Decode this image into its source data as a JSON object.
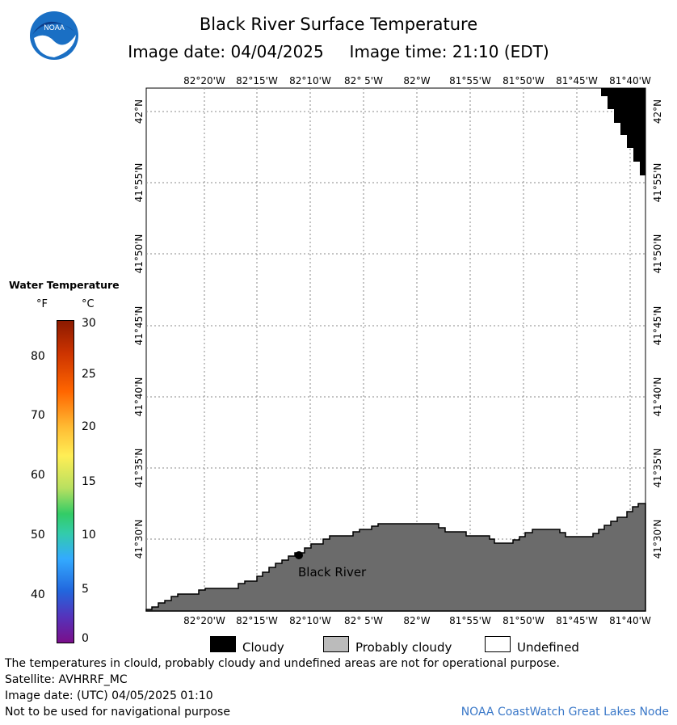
{
  "header": {
    "title": "Black River Surface Temperature",
    "subtitle": "Image date: 04/04/2025     Image time: 21:10 (EDT)",
    "logo_text": "NOAA"
  },
  "map": {
    "lon_labels": [
      "82°20'W",
      "82°15'W",
      "82°10'W",
      "82° 5'W",
      "82°W",
      "81°55'W",
      "81°50'W",
      "81°45'W",
      "81°40'W"
    ],
    "lat_labels": [
      "42°N",
      "41°55'N",
      "41°50'N",
      "41°45'N",
      "41°40'N",
      "41°35'N",
      "41°30'N"
    ],
    "station_label": "Black River",
    "colors": {
      "land": "#6b6b6b",
      "cloudy": "#000000",
      "probably_cloudy": "#bbbbbb",
      "undefined": "#ffffff",
      "grid": "#8a8a8a"
    }
  },
  "legend": {
    "title": "Water Temperature",
    "unit_f": "°F",
    "unit_c": "°C",
    "f_ticks": [
      "80",
      "70",
      "60",
      "50",
      "40"
    ],
    "c_ticks": [
      "30",
      "25",
      "20",
      "15",
      "10",
      "5",
      "0"
    ],
    "keys": [
      {
        "label": "Cloudy",
        "color": "#000000"
      },
      {
        "label": "Probably cloudy",
        "color": "#bbbbbb"
      },
      {
        "label": "Undefined",
        "color": "#ffffff"
      }
    ]
  },
  "footer": {
    "line1": "The temperatures in clould, probably cloudy and undefined areas are not for operational purpose.",
    "line2": "Satellite: AVHRRF_MC",
    "line3": "Image date: (UTC) 04/05/2025  01:10",
    "line4": "Not to be used for navigational purpose",
    "credit": "NOAA CoastWatch Great Lakes Node"
  }
}
